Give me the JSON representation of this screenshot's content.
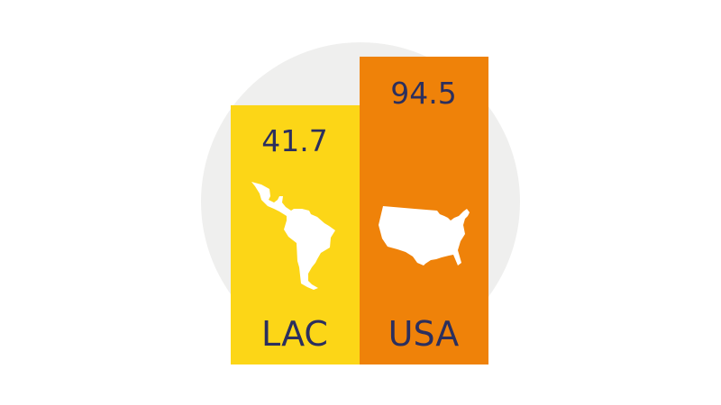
{
  "chart_data": {
    "type": "bar",
    "categories": [
      "LAC",
      "USA"
    ],
    "values": [
      41.7,
      94.5
    ],
    "data_labels": [
      "41.7",
      "94.5"
    ],
    "colors": [
      "#fcd617",
      "#ef8209"
    ],
    "icons": [
      "latin-america-map-icon",
      "usa-map-icon"
    ],
    "text_color": "#2b2f5e",
    "background_circle_color": "#efefee",
    "title": "",
    "xlabel": "",
    "ylabel": "",
    "grid": false
  }
}
